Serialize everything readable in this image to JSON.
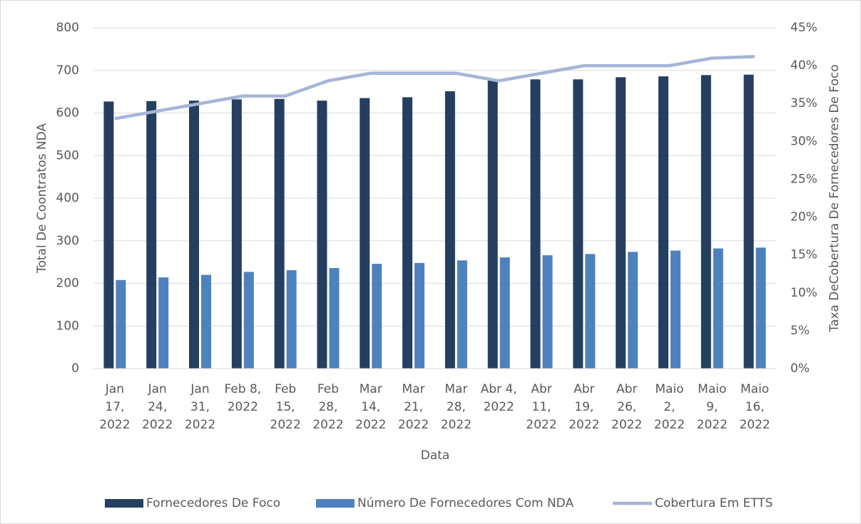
{
  "chart_data": {
    "type": "bar",
    "categories": [
      "Jan 17, 2022",
      "Jan 24, 2022",
      "Jan 31, 2022",
      "Feb 8, 2022",
      "Feb 15, 2022",
      "Feb 28, 2022",
      "Mar 14, 2022",
      "Mar 21, 2022",
      "Mar 28, 2022",
      "Abr 4, 2022",
      "Abr 11, 2022",
      "Abr 19, 2022",
      "Abr 26, 2022",
      "Maio 2, 2022",
      "Maio 9, 2022",
      "Maio 16, 2022"
    ],
    "series": [
      {
        "name": "Fornecedores De Foco",
        "color": "#243f60",
        "type": "bar",
        "values": [
          627,
          628,
          629,
          632,
          633,
          629,
          635,
          637,
          651,
          676,
          679,
          679,
          684,
          686,
          689,
          690
        ]
      },
      {
        "name": "Número De Fornecedores Com NDA",
        "color": "#4f81bd",
        "type": "bar",
        "values": [
          208,
          214,
          220,
          227,
          231,
          236,
          246,
          248,
          254,
          261,
          266,
          269,
          274,
          277,
          282,
          284
        ]
      },
      {
        "name": "Cobertura Em ETTS",
        "color": "#a6b5d7",
        "type": "line",
        "axis": "y2",
        "values": [
          33,
          34,
          35,
          36,
          36,
          38,
          39,
          39,
          39,
          38,
          39,
          40,
          40,
          40,
          41,
          41.2
        ]
      }
    ],
    "xlabel": "Data",
    "ylabel": "Total De Coontratos NDA",
    "y2label": "Taxa DeCobertura De Fornecedores De Foco",
    "ylim": [
      0,
      800
    ],
    "yticks": [
      0,
      100,
      200,
      300,
      400,
      500,
      600,
      700,
      800
    ],
    "y2lim": [
      0,
      45
    ],
    "y2ticks": [
      {
        "value": 0,
        "label": "0%"
      },
      {
        "value": 5,
        "label": "5%"
      },
      {
        "value": 10,
        "label": "10%"
      },
      {
        "value": 15,
        "label": "15%"
      },
      {
        "value": 20,
        "label": "20%"
      },
      {
        "value": 25,
        "label": "25%"
      },
      {
        "value": 30,
        "label": "30%"
      },
      {
        "value": 35,
        "label": "35%"
      },
      {
        "value": 40,
        "label": "40%"
      },
      {
        "value": 45,
        "label": "45%"
      }
    ],
    "grid": true,
    "legend": "bottom"
  }
}
